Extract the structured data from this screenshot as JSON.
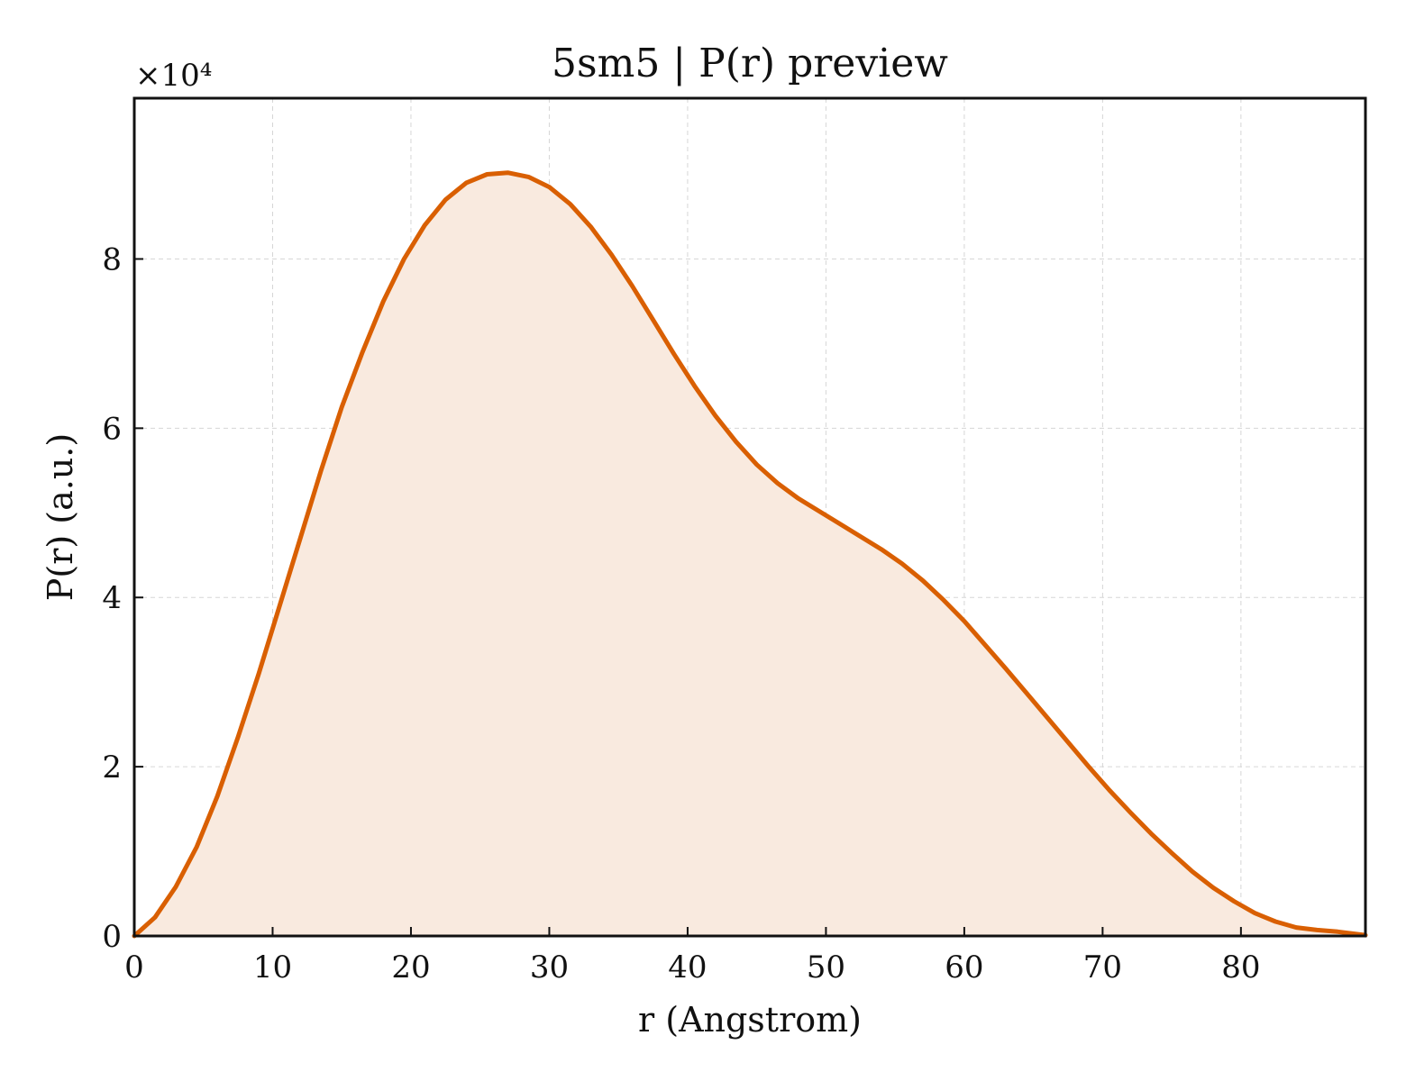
{
  "chart_data": {
    "type": "area",
    "title": "5sm5 | P(r) preview",
    "xlabel": "r (Angstrom)",
    "ylabel": "P(r) (a.u.)",
    "y_multiplier_label": "×10⁴",
    "xlim": [
      0,
      89
    ],
    "ylim": [
      0,
      9.9
    ],
    "y_scale": 10000,
    "xticks": [
      0,
      10,
      20,
      30,
      40,
      50,
      60,
      70,
      80
    ],
    "yticks": [
      0,
      2,
      4,
      6,
      8
    ],
    "xtick_labels": [
      "0",
      "10",
      "20",
      "30",
      "40",
      "50",
      "60",
      "70",
      "80"
    ],
    "ytick_labels": [
      "0",
      "2",
      "4",
      "6",
      "8"
    ],
    "grid": true,
    "colors": {
      "line": "#d95f02",
      "fill": "#f9eadf"
    },
    "series": [
      {
        "x": [
          0,
          1.5,
          3,
          4.5,
          6,
          7.5,
          9,
          10.5,
          12,
          13.5,
          15,
          16.5,
          18,
          19.5,
          21,
          22.5,
          24,
          25.5,
          27,
          28.5,
          30,
          31.5,
          33,
          34.5,
          36,
          37.5,
          39,
          40.5,
          42,
          43.5,
          45,
          46.5,
          48,
          49.5,
          51,
          52.5,
          54,
          55.5,
          57,
          58.5,
          60,
          61.5,
          63,
          64.5,
          66,
          67.5,
          69,
          70.5,
          72,
          73.5,
          75,
          76.5,
          78,
          79.5,
          81,
          82.5,
          84,
          85.5,
          87,
          89
        ],
        "values": [
          0.0,
          0.22,
          0.58,
          1.05,
          1.65,
          2.35,
          3.1,
          3.9,
          4.7,
          5.5,
          6.25,
          6.9,
          7.5,
          8.0,
          8.4,
          8.7,
          8.9,
          9.0,
          9.02,
          8.97,
          8.85,
          8.65,
          8.38,
          8.05,
          7.68,
          7.28,
          6.88,
          6.5,
          6.15,
          5.84,
          5.57,
          5.35,
          5.17,
          5.02,
          4.87,
          4.72,
          4.57,
          4.4,
          4.2,
          3.97,
          3.72,
          3.44,
          3.16,
          2.87,
          2.58,
          2.29,
          2.0,
          1.72,
          1.46,
          1.21,
          0.98,
          0.76,
          0.57,
          0.41,
          0.27,
          0.17,
          0.1,
          0.07,
          0.05,
          0.01
        ]
      }
    ]
  }
}
